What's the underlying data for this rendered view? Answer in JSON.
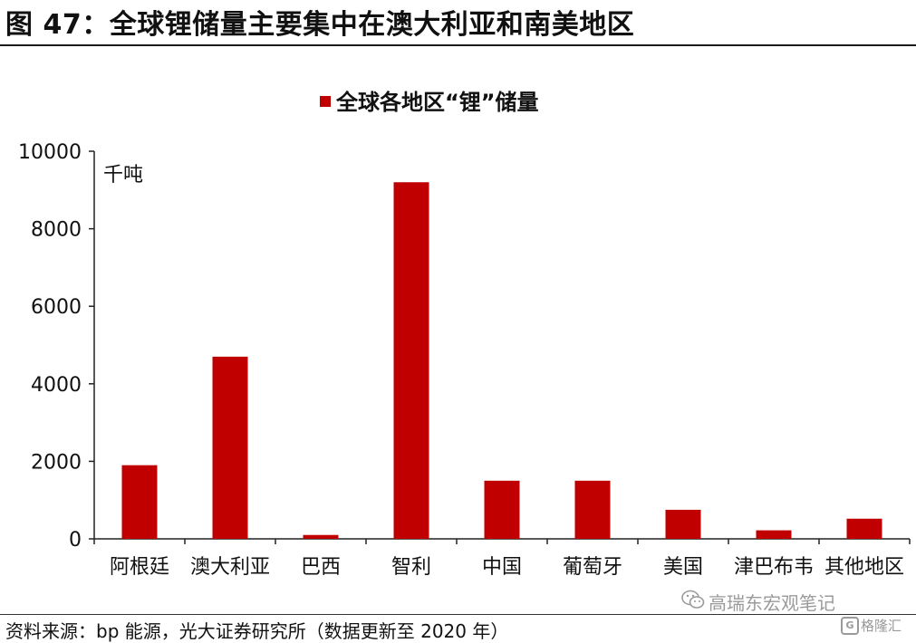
{
  "figure": {
    "title": "图 47：全球锂储量主要集中在澳大利亚和南美地区",
    "source": "资料来源：bp 能源，光大证券研究所（数据更新至 2020 年）"
  },
  "watermarks": {
    "wechat_icon": "wechat-icon",
    "line1": "高瑞东宏观笔记",
    "line2_badge": "G",
    "line2": "格隆汇"
  },
  "chart_data": {
    "type": "bar",
    "legend": "全球各地区“锂”储量",
    "legend_position": "top-center",
    "unit_label": "千吨",
    "categories": [
      "阿根廷",
      "澳大利亚",
      "巴西",
      "智利",
      "中国",
      "葡萄牙",
      "美国",
      "津巴布韦",
      "其他地区"
    ],
    "series": [
      {
        "name": "全球各地区“锂”储量",
        "values": [
          1900,
          4700,
          100,
          9200,
          1500,
          1500,
          750,
          220,
          520
        ]
      }
    ],
    "ylim": [
      0,
      10000
    ],
    "yticks": [
      0,
      2000,
      4000,
      6000,
      8000,
      10000
    ],
    "grid": false,
    "color": "#C00000"
  }
}
